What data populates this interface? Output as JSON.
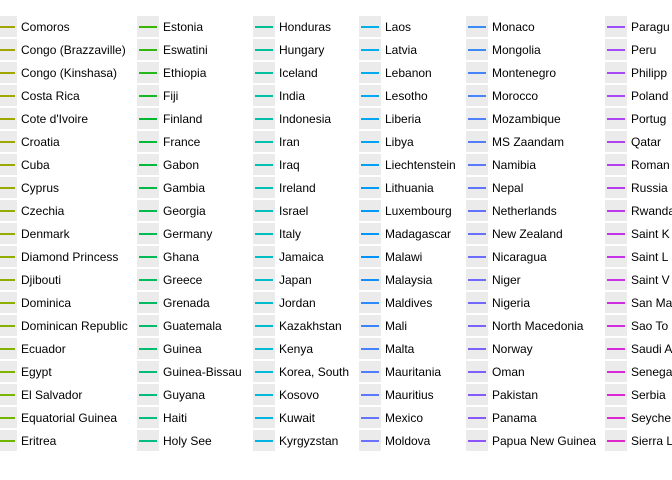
{
  "chart_data": {
    "type": "line",
    "legend": {
      "placement": "full-panel",
      "columns": [
        {
          "entries": [
            {
              "label": "Comoros",
              "color": "#a3a500"
            },
            {
              "label": "Congo (Brazzaville)",
              "color": "#a3a500"
            },
            {
              "label": "Congo (Kinshasa)",
              "color": "#a2a600"
            },
            {
              "label": "Costa Rica",
              "color": "#a0a700"
            },
            {
              "label": "Cote d'Ivoire",
              "color": "#9fa800"
            },
            {
              "label": "Croatia",
              "color": "#9da900"
            },
            {
              "label": "Cuba",
              "color": "#9baa00"
            },
            {
              "label": "Cyprus",
              "color": "#99ab00"
            },
            {
              "label": "Czechia",
              "color": "#97ac00"
            },
            {
              "label": "Denmark",
              "color": "#94ad00"
            },
            {
              "label": "Diamond Princess",
              "color": "#91ae00"
            },
            {
              "label": "Djibouti",
              "color": "#8eaf00"
            },
            {
              "label": "Dominica",
              "color": "#8bb000"
            },
            {
              "label": "Dominican Republic",
              "color": "#87b100"
            },
            {
              "label": "Ecuador",
              "color": "#83b200"
            },
            {
              "label": "Egypt",
              "color": "#7fb300"
            },
            {
              "label": "El Salvador",
              "color": "#7ab400"
            },
            {
              "label": "Equatorial Guinea",
              "color": "#74b500"
            },
            {
              "label": "Eritrea",
              "color": "#6eb600"
            }
          ]
        },
        {
          "entries": [
            {
              "label": "Estonia",
              "color": "#39b600"
            },
            {
              "label": "Eswatini",
              "color": "#30b70f"
            },
            {
              "label": "Ethiopia",
              "color": "#25b71b"
            },
            {
              "label": "Fiji",
              "color": "#14b824"
            },
            {
              "label": "Finland",
              "color": "#00b82d"
            },
            {
              "label": "France",
              "color": "#00b934"
            },
            {
              "label": "Gabon",
              "color": "#00b93b"
            },
            {
              "label": "Gambia",
              "color": "#00ba42"
            },
            {
              "label": "Georgia",
              "color": "#00ba49"
            },
            {
              "label": "Germany",
              "color": "#00ba50"
            },
            {
              "label": "Ghana",
              "color": "#00bb56"
            },
            {
              "label": "Greece",
              "color": "#00bb5c"
            },
            {
              "label": "Grenada",
              "color": "#00bb62"
            },
            {
              "label": "Guatemala",
              "color": "#00bc68"
            },
            {
              "label": "Guinea",
              "color": "#00bc6e"
            },
            {
              "label": "Guinea-Bissau",
              "color": "#00bc74"
            },
            {
              "label": "Guyana",
              "color": "#00bc7a"
            },
            {
              "label": "Haiti",
              "color": "#00bd80"
            },
            {
              "label": "Holy See",
              "color": "#00bd86"
            }
          ]
        },
        {
          "entries": [
            {
              "label": "Honduras",
              "color": "#00bf96"
            },
            {
              "label": "Hungary",
              "color": "#00bf9b"
            },
            {
              "label": "Iceland",
              "color": "#00c0a0"
            },
            {
              "label": "India",
              "color": "#00c0a5"
            },
            {
              "label": "Indonesia",
              "color": "#00c0aa"
            },
            {
              "label": "Iran",
              "color": "#00c0ae"
            },
            {
              "label": "Iraq",
              "color": "#00c0b3"
            },
            {
              "label": "Ireland",
              "color": "#00c0b8"
            },
            {
              "label": "Israel",
              "color": "#00bfbc"
            },
            {
              "label": "Italy",
              "color": "#00bfc1"
            },
            {
              "label": "Jamaica",
              "color": "#00bec5"
            },
            {
              "label": "Japan",
              "color": "#00bdc9"
            },
            {
              "label": "Jordan",
              "color": "#00bccd"
            },
            {
              "label": "Kazakhstan",
              "color": "#00bbd1"
            },
            {
              "label": "Kenya",
              "color": "#00bad5"
            },
            {
              "label": "Korea, South",
              "color": "#00b9d9"
            },
            {
              "label": "Kosovo",
              "color": "#00b8dc"
            },
            {
              "label": "Kuwait",
              "color": "#00b6e0"
            },
            {
              "label": "Kyrgyzstan",
              "color": "#00b4e3"
            }
          ]
        },
        {
          "entries": [
            {
              "label": "Laos",
              "color": "#00b0e9"
            },
            {
              "label": "Latvia",
              "color": "#00aeec"
            },
            {
              "label": "Lebanon",
              "color": "#00acee"
            },
            {
              "label": "Lesotho",
              "color": "#00a9f1"
            },
            {
              "label": "Liberia",
              "color": "#00a6f3"
            },
            {
              "label": "Libya",
              "color": "#00a3f5"
            },
            {
              "label": "Liechtenstein",
              "color": "#00a0f7"
            },
            {
              "label": "Lithuania",
              "color": "#009df8"
            },
            {
              "label": "Luxembourg",
              "color": "#0099fa"
            },
            {
              "label": "Madagascar",
              "color": "#0096fb"
            },
            {
              "label": "Malawi",
              "color": "#0092fc"
            },
            {
              "label": "Malaysia",
              "color": "#138efd"
            },
            {
              "label": "Maldives",
              "color": "#2a8afe"
            },
            {
              "label": "Mali",
              "color": "#3886fe"
            },
            {
              "label": "Malta",
              "color": "#4582ff"
            },
            {
              "label": "Mauritania",
              "color": "#507dff"
            },
            {
              "label": "Mauritius",
              "color": "#5a79ff"
            },
            {
              "label": "Mexico",
              "color": "#6374ff"
            },
            {
              "label": "Moldova",
              "color": "#6b70ff"
            }
          ]
        },
        {
          "entries": [
            {
              "label": "Monaco",
              "color": "#3a8bf7"
            },
            {
              "label": "Mongolia",
              "color": "#3f88f8"
            },
            {
              "label": "Montenegro",
              "color": "#4585f9"
            },
            {
              "label": "Morocco",
              "color": "#4b82fa"
            },
            {
              "label": "Mozambique",
              "color": "#507ffb"
            },
            {
              "label": "MS Zaandam",
              "color": "#557cfb"
            },
            {
              "label": "Namibia",
              "color": "#5a79fc"
            },
            {
              "label": "Nepal",
              "color": "#5f76fc"
            },
            {
              "label": "Netherlands",
              "color": "#6473fd"
            },
            {
              "label": "New Zealand",
              "color": "#6870fd"
            },
            {
              "label": "Nicaragua",
              "color": "#6c6dfd"
            },
            {
              "label": "Niger",
              "color": "#706afd"
            },
            {
              "label": "Nigeria",
              "color": "#7467fd"
            },
            {
              "label": "North Macedonia",
              "color": "#7864fd"
            },
            {
              "label": "Norway",
              "color": "#7c61fd"
            },
            {
              "label": "Oman",
              "color": "#805efc"
            },
            {
              "label": "Pakistan",
              "color": "#845bfc"
            },
            {
              "label": "Panama",
              "color": "#8858fb"
            },
            {
              "label": "Papua New Guinea",
              "color": "#8b55fb"
            }
          ]
        },
        {
          "entries": [
            {
              "label": "Paragu",
              "color": "#9e50f8"
            },
            {
              "label": "Peru",
              "color": "#a24df7"
            },
            {
              "label": "Philipp",
              "color": "#a64af6"
            },
            {
              "label": "Poland",
              "color": "#aa47f5"
            },
            {
              "label": "Portug",
              "color": "#ae44f4"
            },
            {
              "label": "Qatar",
              "color": "#b241f2"
            },
            {
              "label": "Roman",
              "color": "#b63ef1"
            },
            {
              "label": "Russia",
              "color": "#ba3bef"
            },
            {
              "label": "Rwanda",
              "color": "#be38ed"
            },
            {
              "label": "Saint K",
              "color": "#c235eb"
            },
            {
              "label": "Saint L",
              "color": "#c632e9"
            },
            {
              "label": "Saint V",
              "color": "#ca30e6"
            },
            {
              "label": "San Ma",
              "color": "#ce2de3"
            },
            {
              "label": "Sao To",
              "color": "#d22be0"
            },
            {
              "label": "Saudi A",
              "color": "#d529dd"
            },
            {
              "label": "Senega",
              "color": "#d827d9"
            },
            {
              "label": "Serbia",
              "color": "#db26d5"
            },
            {
              "label": "Seyche",
              "color": "#de26d1"
            },
            {
              "label": "Sierra L",
              "color": "#e127cc"
            }
          ]
        }
      ]
    }
  }
}
